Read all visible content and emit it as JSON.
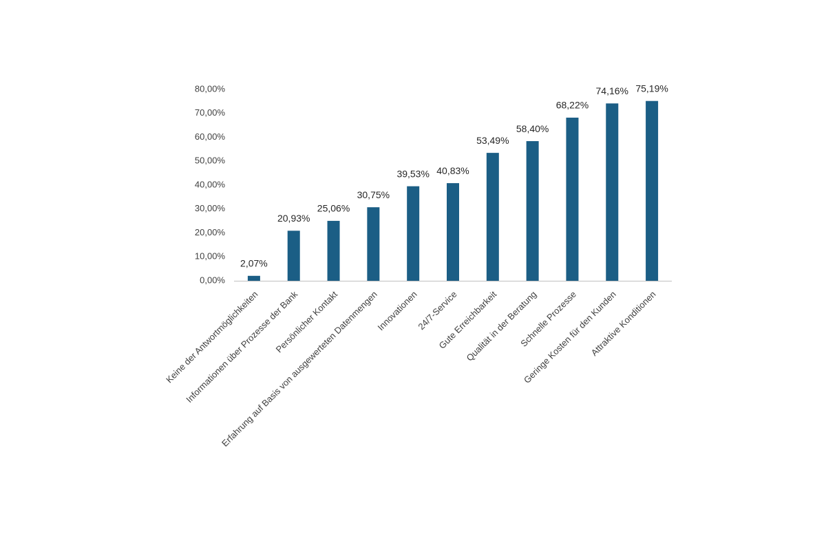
{
  "chart_data": {
    "type": "bar",
    "categories": [
      "Keine der Antwortmöglichkeiten",
      "Informationen über Prozesse der Bank",
      "Persönlicher Kontakt",
      "Erfahrung auf Basis von ausgewerteten Datenmengen",
      "Innovationen",
      "24/7-Service",
      "Gute Erreichbarkeit",
      "Qualität in der Beratung",
      "Schnelle Prozesse",
      "Geringe Kosten für den Kunden",
      "Attraktive Konditionen"
    ],
    "values": [
      2.07,
      20.93,
      25.06,
      30.75,
      39.53,
      40.83,
      53.49,
      58.4,
      68.22,
      74.16,
      75.19
    ],
    "value_labels": [
      "2,07%",
      "20,93%",
      "25,06%",
      "30,75%",
      "39,53%",
      "40,83%",
      "53,49%",
      "58,40%",
      "68,22%",
      "74,16%",
      "75,19%"
    ],
    "color": "#1b5e85",
    "ylim": [
      0,
      80
    ],
    "yticks": [
      {
        "value": 0,
        "label": "0,00%"
      },
      {
        "value": 10,
        "label": "10,00%"
      },
      {
        "value": 20,
        "label": "20,00%"
      },
      {
        "value": 30,
        "label": "30,00%"
      },
      {
        "value": 40,
        "label": "40,00%"
      },
      {
        "value": 50,
        "label": "50,00%"
      },
      {
        "value": 60,
        "label": "60,00%"
      },
      {
        "value": 70,
        "label": "70,00%"
      },
      {
        "value": 80,
        "label": "80,00%"
      }
    ],
    "grid": false
  }
}
